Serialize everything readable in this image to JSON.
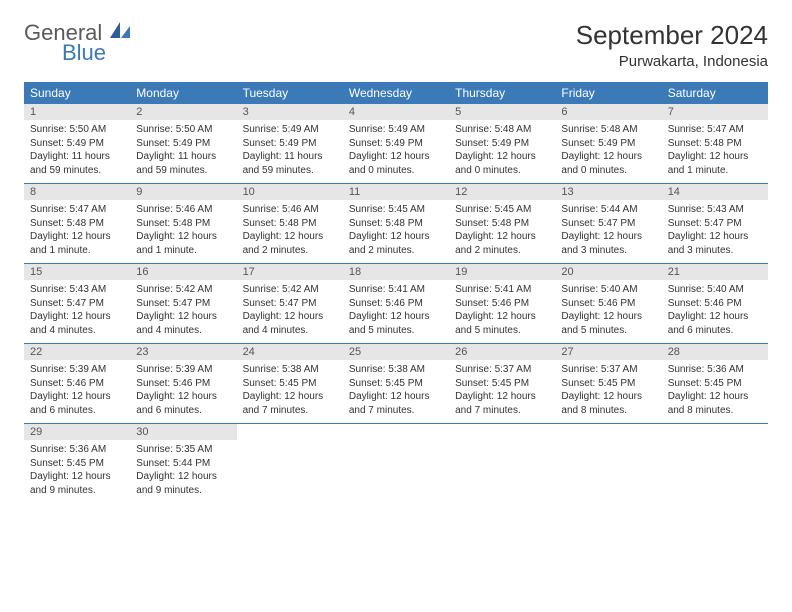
{
  "logo": {
    "text1": "General",
    "text2": "Blue"
  },
  "title": "September 2024",
  "location": "Purwakarta, Indonesia",
  "colors": {
    "header_bg": "#3b79b7",
    "header_text": "#ffffff",
    "daynum_bg": "#e6e6e6",
    "border": "#3b79b7"
  },
  "fonts": {
    "title_size": 26,
    "location_size": 15,
    "header_size": 12,
    "daynum_size": 11,
    "detail_size": 10
  },
  "weekdays": [
    "Sunday",
    "Monday",
    "Tuesday",
    "Wednesday",
    "Thursday",
    "Friday",
    "Saturday"
  ],
  "weeks": [
    [
      {
        "n": "1",
        "sunrise": "5:50 AM",
        "sunset": "5:49 PM",
        "daylight": "11 hours and 59 minutes."
      },
      {
        "n": "2",
        "sunrise": "5:50 AM",
        "sunset": "5:49 PM",
        "daylight": "11 hours and 59 minutes."
      },
      {
        "n": "3",
        "sunrise": "5:49 AM",
        "sunset": "5:49 PM",
        "daylight": "11 hours and 59 minutes."
      },
      {
        "n": "4",
        "sunrise": "5:49 AM",
        "sunset": "5:49 PM",
        "daylight": "12 hours and 0 minutes."
      },
      {
        "n": "5",
        "sunrise": "5:48 AM",
        "sunset": "5:49 PM",
        "daylight": "12 hours and 0 minutes."
      },
      {
        "n": "6",
        "sunrise": "5:48 AM",
        "sunset": "5:49 PM",
        "daylight": "12 hours and 0 minutes."
      },
      {
        "n": "7",
        "sunrise": "5:47 AM",
        "sunset": "5:48 PM",
        "daylight": "12 hours and 1 minute."
      }
    ],
    [
      {
        "n": "8",
        "sunrise": "5:47 AM",
        "sunset": "5:48 PM",
        "daylight": "12 hours and 1 minute."
      },
      {
        "n": "9",
        "sunrise": "5:46 AM",
        "sunset": "5:48 PM",
        "daylight": "12 hours and 1 minute."
      },
      {
        "n": "10",
        "sunrise": "5:46 AM",
        "sunset": "5:48 PM",
        "daylight": "12 hours and 2 minutes."
      },
      {
        "n": "11",
        "sunrise": "5:45 AM",
        "sunset": "5:48 PM",
        "daylight": "12 hours and 2 minutes."
      },
      {
        "n": "12",
        "sunrise": "5:45 AM",
        "sunset": "5:48 PM",
        "daylight": "12 hours and 2 minutes."
      },
      {
        "n": "13",
        "sunrise": "5:44 AM",
        "sunset": "5:47 PM",
        "daylight": "12 hours and 3 minutes."
      },
      {
        "n": "14",
        "sunrise": "5:43 AM",
        "sunset": "5:47 PM",
        "daylight": "12 hours and 3 minutes."
      }
    ],
    [
      {
        "n": "15",
        "sunrise": "5:43 AM",
        "sunset": "5:47 PM",
        "daylight": "12 hours and 4 minutes."
      },
      {
        "n": "16",
        "sunrise": "5:42 AM",
        "sunset": "5:47 PM",
        "daylight": "12 hours and 4 minutes."
      },
      {
        "n": "17",
        "sunrise": "5:42 AM",
        "sunset": "5:47 PM",
        "daylight": "12 hours and 4 minutes."
      },
      {
        "n": "18",
        "sunrise": "5:41 AM",
        "sunset": "5:46 PM",
        "daylight": "12 hours and 5 minutes."
      },
      {
        "n": "19",
        "sunrise": "5:41 AM",
        "sunset": "5:46 PM",
        "daylight": "12 hours and 5 minutes."
      },
      {
        "n": "20",
        "sunrise": "5:40 AM",
        "sunset": "5:46 PM",
        "daylight": "12 hours and 5 minutes."
      },
      {
        "n": "21",
        "sunrise": "5:40 AM",
        "sunset": "5:46 PM",
        "daylight": "12 hours and 6 minutes."
      }
    ],
    [
      {
        "n": "22",
        "sunrise": "5:39 AM",
        "sunset": "5:46 PM",
        "daylight": "12 hours and 6 minutes."
      },
      {
        "n": "23",
        "sunrise": "5:39 AM",
        "sunset": "5:46 PM",
        "daylight": "12 hours and 6 minutes."
      },
      {
        "n": "24",
        "sunrise": "5:38 AM",
        "sunset": "5:45 PM",
        "daylight": "12 hours and 7 minutes."
      },
      {
        "n": "25",
        "sunrise": "5:38 AM",
        "sunset": "5:45 PM",
        "daylight": "12 hours and 7 minutes."
      },
      {
        "n": "26",
        "sunrise": "5:37 AM",
        "sunset": "5:45 PM",
        "daylight": "12 hours and 7 minutes."
      },
      {
        "n": "27",
        "sunrise": "5:37 AM",
        "sunset": "5:45 PM",
        "daylight": "12 hours and 8 minutes."
      },
      {
        "n": "28",
        "sunrise": "5:36 AM",
        "sunset": "5:45 PM",
        "daylight": "12 hours and 8 minutes."
      }
    ],
    [
      {
        "n": "29",
        "sunrise": "5:36 AM",
        "sunset": "5:45 PM",
        "daylight": "12 hours and 9 minutes."
      },
      {
        "n": "30",
        "sunrise": "5:35 AM",
        "sunset": "5:44 PM",
        "daylight": "12 hours and 9 minutes."
      },
      null,
      null,
      null,
      null,
      null
    ]
  ],
  "labels": {
    "sunrise": "Sunrise:",
    "sunset": "Sunset:",
    "daylight": "Daylight:"
  }
}
